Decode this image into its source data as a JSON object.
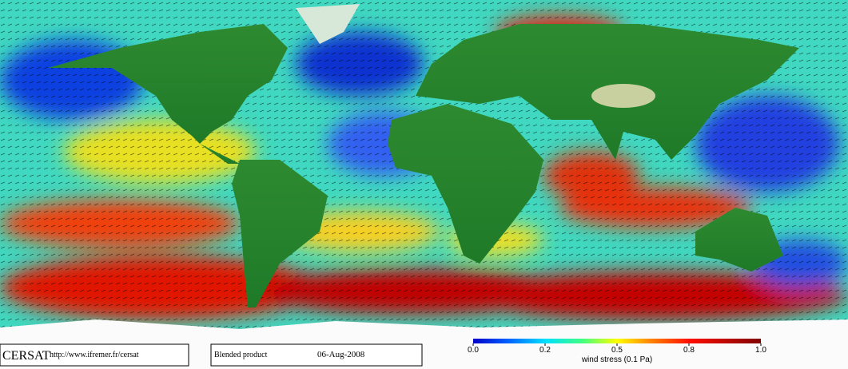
{
  "footer": {
    "logo": "CERSAT",
    "url": "http://www.ifremer.fr/cersat",
    "product": "Blended product",
    "date": "06-Aug-2008"
  },
  "colorbar": {
    "ticks": [
      {
        "value": 0,
        "label": "0.0"
      },
      0.2,
      0.5,
      0.8,
      {
        "value": 1,
        "label": "1.0"
      }
    ],
    "label": "wind stress (0.1 Pa)"
  }
}
